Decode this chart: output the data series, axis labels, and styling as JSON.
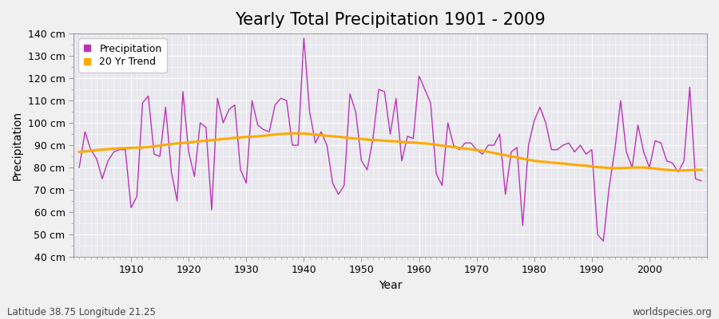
{
  "title": "Yearly Total Precipitation 1901 - 2009",
  "xlabel": "Year",
  "ylabel": "Precipitation",
  "subtitle": "Latitude 38.75 Longitude 21.25",
  "watermark": "worldspecies.org",
  "years": [
    1901,
    1902,
    1903,
    1904,
    1905,
    1906,
    1907,
    1908,
    1909,
    1910,
    1911,
    1912,
    1913,
    1914,
    1915,
    1916,
    1917,
    1918,
    1919,
    1920,
    1921,
    1922,
    1923,
    1924,
    1925,
    1926,
    1927,
    1928,
    1929,
    1930,
    1931,
    1932,
    1933,
    1934,
    1935,
    1936,
    1937,
    1938,
    1939,
    1940,
    1941,
    1942,
    1943,
    1944,
    1945,
    1946,
    1947,
    1948,
    1949,
    1950,
    1951,
    1952,
    1953,
    1954,
    1955,
    1956,
    1957,
    1958,
    1959,
    1960,
    1961,
    1962,
    1963,
    1964,
    1965,
    1966,
    1967,
    1968,
    1969,
    1970,
    1971,
    1972,
    1973,
    1974,
    1975,
    1976,
    1977,
    1978,
    1979,
    1980,
    1981,
    1982,
    1983,
    1984,
    1985,
    1986,
    1987,
    1988,
    1989,
    1990,
    1991,
    1992,
    1993,
    1994,
    1995,
    1996,
    1997,
    1998,
    1999,
    2000,
    2001,
    2002,
    2003,
    2004,
    2005,
    2006,
    2007,
    2008,
    2009
  ],
  "precipitation": [
    80,
    96,
    88,
    84,
    75,
    83,
    87,
    88,
    88,
    62,
    67,
    109,
    112,
    86,
    85,
    107,
    78,
    65,
    114,
    87,
    76,
    100,
    98,
    61,
    111,
    100,
    106,
    108,
    79,
    73,
    110,
    99,
    97,
    96,
    108,
    111,
    110,
    90,
    90,
    138,
    105,
    91,
    96,
    90,
    73,
    68,
    72,
    113,
    105,
    83,
    79,
    93,
    115,
    114,
    95,
    111,
    83,
    94,
    93,
    121,
    115,
    109,
    77,
    72,
    100,
    90,
    88,
    91,
    91,
    88,
    86,
    90,
    90,
    95,
    68,
    87,
    89,
    54,
    90,
    101,
    107,
    100,
    88,
    88,
    90,
    91,
    87,
    90,
    86,
    88,
    50,
    47,
    71,
    88,
    110,
    87,
    80,
    99,
    87,
    80,
    92,
    91,
    83,
    82,
    78,
    83,
    116,
    75,
    74
  ],
  "trend": [
    87.0,
    87.2,
    87.5,
    87.8,
    88.0,
    88.2,
    88.4,
    88.6,
    88.7,
    88.8,
    88.9,
    89.0,
    89.2,
    89.5,
    89.8,
    90.2,
    90.5,
    90.8,
    91.0,
    91.2,
    91.5,
    91.8,
    92.0,
    92.3,
    92.5,
    92.8,
    93.0,
    93.3,
    93.5,
    93.7,
    93.8,
    94.0,
    94.2,
    94.5,
    94.8,
    95.0,
    95.2,
    95.3,
    95.3,
    95.2,
    95.0,
    94.8,
    94.5,
    94.2,
    94.0,
    93.8,
    93.5,
    93.2,
    93.0,
    92.8,
    92.5,
    92.3,
    92.2,
    92.0,
    91.8,
    91.7,
    91.5,
    91.3,
    91.2,
    91.0,
    90.8,
    90.5,
    90.2,
    89.8,
    89.5,
    89.2,
    88.8,
    88.5,
    88.2,
    87.8,
    87.5,
    87.0,
    86.5,
    86.0,
    85.5,
    85.0,
    84.5,
    84.0,
    83.5,
    83.0,
    82.7,
    82.5,
    82.2,
    82.0,
    81.8,
    81.5,
    81.2,
    81.0,
    80.8,
    80.5,
    80.2,
    80.0,
    79.8,
    79.7,
    79.7,
    79.8,
    80.0,
    80.0,
    80.0,
    79.8,
    79.5,
    79.2,
    79.0,
    78.8,
    78.7,
    78.7,
    78.8,
    79.0,
    79.0
  ],
  "precip_color": "#bb33bb",
  "trend_color": "#ffaa00",
  "bg_color": "#f0f0f0",
  "plot_bg_color": "#e8e8ee",
  "grid_color": "#ffffff",
  "ylim": [
    40,
    140
  ],
  "xlim": [
    1900,
    2010
  ],
  "yticks": [
    40,
    50,
    60,
    70,
    80,
    90,
    100,
    110,
    120,
    130,
    140
  ],
  "xticks": [
    1910,
    1920,
    1930,
    1940,
    1950,
    1960,
    1970,
    1980,
    1990,
    2000
  ],
  "title_fontsize": 15,
  "label_fontsize": 10,
  "tick_fontsize": 9,
  "legend_fontsize": 9
}
